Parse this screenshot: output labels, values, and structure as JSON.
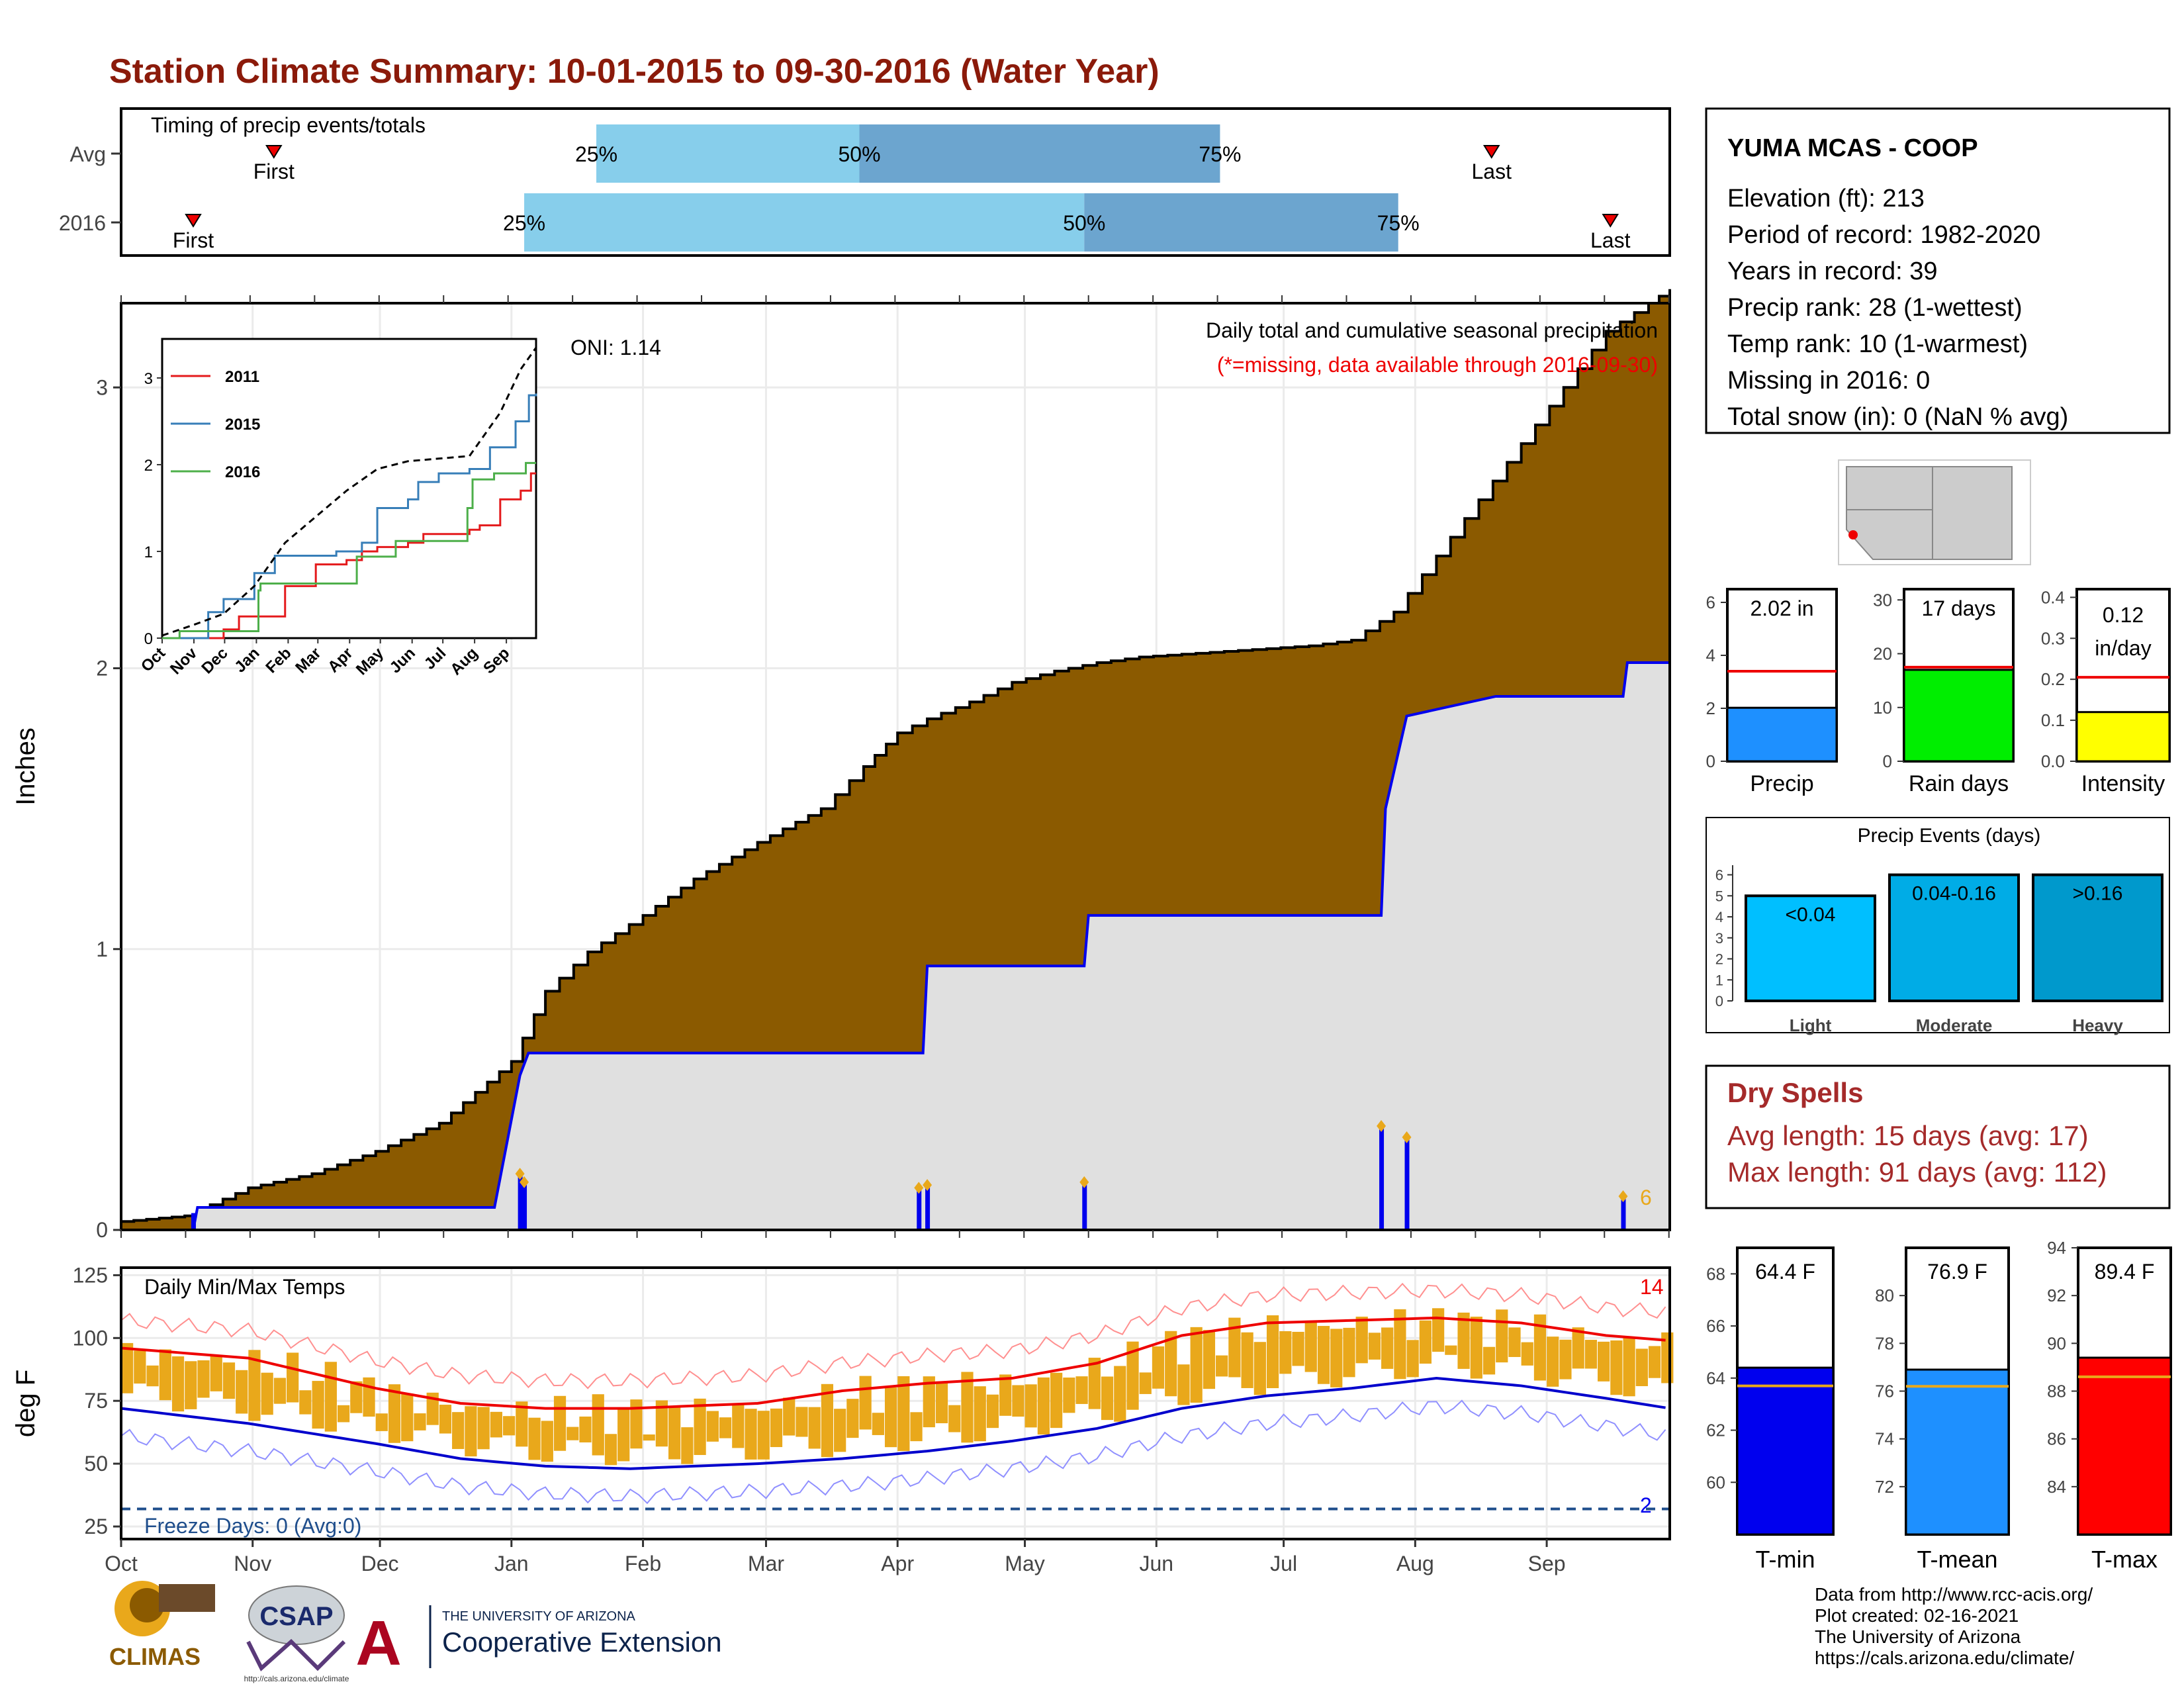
{
  "title": "Station Climate Summary: 10-01-2015 to 09-30-2016 (Water Year)",
  "colors": {
    "title": "#8b1a0a",
    "brown": "#8b5a00",
    "blue": "#0000ee",
    "light_bar": "#87ceeb",
    "dark_bar": "#6ca5cf",
    "gray_fill": "#e0e0e0",
    "orange": "#e9a81b",
    "red": "#ee0000",
    "dry_red": "#a52a2a"
  },
  "timing": {
    "label": "Timing of precip events/totals",
    "rows": [
      {
        "label": "Avg",
        "first_label": "First",
        "last_label": "Last",
        "p25_label": "25%",
        "p50_label": "50%",
        "p75_label": "75%"
      },
      {
        "label": "2016",
        "first_label": "First",
        "last_label": "Last",
        "p25_label": "25%",
        "p50_label": "50%",
        "p75_label": "75%"
      }
    ]
  },
  "station": {
    "name": "YUMA MCAS - COOP",
    "lines": [
      "Elevation (ft): 213",
      "Period of record: 1982-2020",
      "Years in record: 39",
      "Precip rank: 28 (1-wettest)",
      "Temp rank: 10 (1-warmest)",
      "Missing in 2016: 0",
      "Total snow (in): 0 (NaN % avg)"
    ]
  },
  "precip": {
    "ylabel": "Inches",
    "yticks": [
      "0",
      "1",
      "2",
      "3"
    ],
    "oni": "ONI: 1.14",
    "subtitle": "Daily total and cumulative seasonal precipitation",
    "missing_note": "(*=missing, data available through 2016-09-30)",
    "event_count": "6"
  },
  "inset": {
    "yticks": [
      "0",
      "1",
      "2",
      "3"
    ],
    "xticks": [
      "Oct",
      "Nov",
      "Dec",
      "Jan",
      "Feb",
      "Mar",
      "Apr",
      "May",
      "Jun",
      "Jul",
      "Aug",
      "Sep"
    ],
    "legend": [
      "2011",
      "2015",
      "2016"
    ]
  },
  "temps": {
    "ylabel": "deg F",
    "title": "Daily Min/Max Temps",
    "yticks": [
      "25",
      "50",
      "75",
      "100",
      "125"
    ],
    "freeze": "Freeze Days: 0 (Avg:0)",
    "hot_count": "14",
    "cold_count": "2",
    "months": [
      "Oct",
      "Nov",
      "Dec",
      "Jan",
      "Feb",
      "Mar",
      "Apr",
      "May",
      "Jun",
      "Jul",
      "Aug",
      "Sep"
    ]
  },
  "mini_bars": [
    {
      "label": "Precip",
      "value_text": "2.02 in",
      "yticks": [
        "0",
        "2",
        "4",
        "6"
      ]
    },
    {
      "label": "Rain days",
      "value_text": "17 days",
      "yticks": [
        "0",
        "10",
        "20",
        "30"
      ]
    },
    {
      "label": "Intensity",
      "value_text": "0.12 in/day",
      "value_line1": "0.12",
      "value_line2": "in/day",
      "yticks": [
        "0.0",
        "0.1",
        "0.2",
        "0.3",
        "0.4"
      ]
    }
  ],
  "events": {
    "title": "Precip Events (days)",
    "yticks": [
      "0",
      "1",
      "2",
      "3",
      "4",
      "5",
      "6"
    ],
    "bars": [
      {
        "cat": "Light",
        "text": "<0.04"
      },
      {
        "cat": "Moderate",
        "text": "0.04-0.16"
      },
      {
        "cat": "Heavy",
        "text": ">0.16"
      }
    ]
  },
  "dry": {
    "title": "Dry Spells",
    "avg": "Avg length: 15 days (avg: 17)",
    "max": "Max length: 91 days (avg: 112)"
  },
  "temp_bars": [
    {
      "label": "T-min",
      "value_text": "64.4 F",
      "yticks": [
        "60",
        "62",
        "64",
        "66",
        "68"
      ]
    },
    {
      "label": "T-mean",
      "value_text": "76.9 F",
      "yticks": [
        "72",
        "74",
        "76",
        "78",
        "80"
      ]
    },
    {
      "label": "T-max",
      "value_text": "89.4 F",
      "yticks": [
        "84",
        "86",
        "88",
        "90",
        "92",
        "94"
      ]
    }
  ],
  "footer": [
    "Data from http://www.rcc-acis.org/",
    "Plot created: 02-16-2021",
    "The University of Arizona",
    "https://cals.arizona.edu/climate/"
  ],
  "logos": {
    "climas": "CLIMAS",
    "csap": "CSAP",
    "csap_url": "http://cals.arizona.edu/climate",
    "ua_small": "THE UNIVERSITY OF ARIZONA",
    "ua_big": "Cooperative Extension"
  },
  "chart_data": [
    {
      "type": "area",
      "title": "Daily total and cumulative seasonal precipitation",
      "ylabel": "Inches",
      "ylim": [
        0,
        3.3
      ],
      "x_unit": "day of water year (0 = Oct 1, 2015)",
      "cumulative_avg": {
        "x": [
          0,
          15,
          30,
          45,
          60,
          75,
          92,
          100,
          110,
          123,
          135,
          150,
          165,
          175,
          183,
          190,
          200,
          210,
          220,
          230,
          240,
          250,
          260,
          270,
          280,
          290,
          300,
          310,
          320,
          330,
          340,
          350,
          360,
          365
        ],
        "y": [
          0.03,
          0.05,
          0.15,
          0.2,
          0.28,
          0.38,
          0.6,
          0.85,
          0.99,
          1.12,
          1.25,
          1.38,
          1.5,
          1.65,
          1.77,
          1.82,
          1.88,
          1.95,
          1.99,
          2.02,
          2.04,
          2.05,
          2.06,
          2.07,
          2.08,
          2.1,
          2.2,
          2.4,
          2.6,
          2.8,
          3.0,
          3.2,
          3.3,
          3.35
        ]
      },
      "cumulative_2016": {
        "x": [
          0,
          17,
          18,
          88,
          94,
          96,
          189,
          190,
          227,
          228,
          297,
          298,
          303,
          324,
          354,
          355,
          365
        ],
        "y": [
          0.0,
          0.0,
          0.08,
          0.08,
          0.55,
          0.63,
          0.63,
          0.94,
          0.94,
          1.12,
          1.12,
          1.5,
          1.83,
          1.9,
          1.9,
          2.02,
          2.02
        ]
      },
      "daily_events": [
        {
          "x": 17,
          "y": 0.06
        },
        {
          "x": 94,
          "y": 0.2
        },
        {
          "x": 95,
          "y": 0.17
        },
        {
          "x": 188,
          "y": 0.15
        },
        {
          "x": 190,
          "y": 0.16
        },
        {
          "x": 227,
          "y": 0.17
        },
        {
          "x": 297,
          "y": 0.37
        },
        {
          "x": 303,
          "y": 0.33
        },
        {
          "x": 354,
          "y": 0.12
        }
      ]
    },
    {
      "type": "line",
      "title": "Daily Min/Max Temps",
      "ylabel": "deg F",
      "ylim": [
        20,
        128
      ],
      "avg_max": {
        "x": [
          0,
          30,
          60,
          80,
          100,
          120,
          150,
          170,
          190,
          210,
          230,
          250,
          270,
          290,
          310,
          330,
          350,
          365
        ],
        "y": [
          96,
          92,
          80,
          74,
          72,
          72,
          74,
          79,
          82,
          84,
          90,
          101,
          106,
          107,
          108,
          106,
          101,
          99
        ]
      },
      "avg_min": {
        "x": [
          0,
          30,
          60,
          80,
          100,
          120,
          150,
          170,
          190,
          210,
          230,
          250,
          270,
          290,
          310,
          330,
          350,
          365
        ],
        "y": [
          72,
          66,
          58,
          52,
          49,
          48,
          50,
          52,
          55,
          59,
          64,
          72,
          77,
          80,
          84,
          81,
          76,
          72
        ]
      },
      "freeze_line": 32
    },
    {
      "type": "line",
      "title": "Inset cumulative precipitation",
      "series": [
        {
          "name": "2011",
          "x": [
            0,
            60,
            75,
            105,
            120,
            150,
            180,
            195,
            210,
            230,
            240,
            255,
            300,
            310,
            330,
            350,
            360,
            365
          ],
          "y": [
            0,
            0.1,
            0.25,
            0.25,
            0.6,
            0.85,
            0.9,
            1.0,
            1.05,
            1.05,
            1.1,
            1.2,
            1.25,
            1.3,
            1.6,
            1.7,
            1.9,
            1.9
          ]
        },
        {
          "name": "2015",
          "x": [
            0,
            45,
            60,
            90,
            110,
            170,
            195,
            210,
            240,
            250,
            270,
            300,
            320,
            345,
            358,
            365
          ],
          "y": [
            0,
            0.3,
            0.45,
            0.75,
            0.95,
            1.0,
            1.1,
            1.5,
            1.6,
            1.8,
            1.9,
            1.95,
            2.2,
            2.5,
            2.8,
            2.82
          ]
        },
        {
          "name": "2016",
          "x": [
            0,
            17,
            88,
            94,
            96,
            189,
            190,
            227,
            228,
            297,
            298,
            303,
            324,
            354,
            355,
            365
          ],
          "y": [
            0,
            0.08,
            0.08,
            0.55,
            0.63,
            0.63,
            0.94,
            0.94,
            1.12,
            1.12,
            1.5,
            1.83,
            1.9,
            1.9,
            2.02,
            2.02
          ]
        },
        {
          "name": "avg",
          "x": [
            0,
            30,
            60,
            90,
            120,
            150,
            180,
            210,
            240,
            270,
            300,
            330,
            350,
            365
          ],
          "y": [
            0.03,
            0.15,
            0.28,
            0.6,
            1.1,
            1.4,
            1.7,
            1.95,
            2.04,
            2.07,
            2.1,
            2.6,
            3.1,
            3.35
          ]
        }
      ]
    },
    {
      "type": "bar",
      "title": "Precip",
      "categories": [
        "2016"
      ],
      "values": [
        2.02
      ],
      "avg_line": 3.4,
      "ylim": [
        0,
        6.5
      ]
    },
    {
      "type": "bar",
      "title": "Rain days",
      "categories": [
        "2016"
      ],
      "values": [
        17
      ],
      "avg_line": 17.5,
      "ylim": [
        0,
        32
      ]
    },
    {
      "type": "bar",
      "title": "Intensity",
      "categories": [
        "2016"
      ],
      "values": [
        0.12
      ],
      "avg_line": 0.205,
      "ylim": [
        0,
        0.42
      ]
    },
    {
      "type": "bar",
      "title": "Precip Events (days)",
      "categories": [
        "Light",
        "Moderate",
        "Heavy"
      ],
      "values": [
        5,
        6,
        6
      ],
      "ylim": [
        0,
        6.3
      ]
    },
    {
      "type": "bar",
      "title": "T-min",
      "categories": [
        "T-min"
      ],
      "values": [
        64.4
      ],
      "avg_line": 63.7,
      "ylim": [
        58,
        69
      ]
    },
    {
      "type": "bar",
      "title": "T-mean",
      "categories": [
        "T-mean"
      ],
      "values": [
        76.9
      ],
      "avg_line": 76.2,
      "ylim": [
        70,
        82
      ]
    },
    {
      "type": "bar",
      "title": "T-max",
      "categories": [
        "T-max"
      ],
      "values": [
        89.4
      ],
      "avg_line": 88.6,
      "ylim": [
        82,
        94
      ]
    },
    {
      "type": "bar",
      "title": "Timing of precip events/totals",
      "categories": [
        "Avg",
        "2016"
      ],
      "series": [
        {
          "name": "Avg",
          "first": 36,
          "p25": 112,
          "p50": 174,
          "p75": 259,
          "last": 323
        },
        {
          "name": "2016",
          "first": 17,
          "p25": 95,
          "p50": 227,
          "p75": 301,
          "last": 351
        }
      ]
    }
  ]
}
